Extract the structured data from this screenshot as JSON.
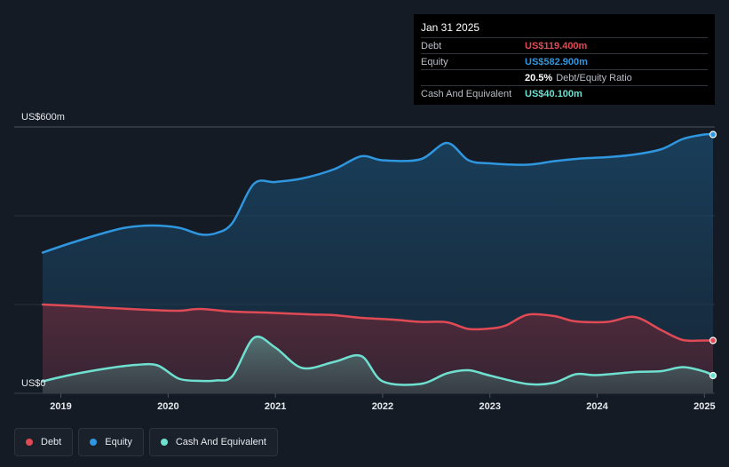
{
  "tooltip": {
    "date": "Jan 31 2025",
    "debt_label": "Debt",
    "debt_value": "US$119.400m",
    "equity_label": "Equity",
    "equity_value": "US$582.900m",
    "ratio_value": "20.5%",
    "ratio_label": "Debt/Equity Ratio",
    "cash_label": "Cash And Equivalent",
    "cash_value": "US$40.100m"
  },
  "legend": {
    "debt": "Debt",
    "equity": "Equity",
    "cash": "Cash And Equivalent"
  },
  "colors": {
    "debt": "#e04a55",
    "equity": "#2f96e0",
    "cash": "#6fe0d0",
    "background": "#151b24"
  },
  "chart_data": {
    "type": "area",
    "title": "",
    "xlabel": "",
    "ylabel": "",
    "y_top_label": "US$600m",
    "y_bottom_label": "US$0",
    "ylim": [
      0,
      600
    ],
    "xlim": [
      2018.83,
      2025.08
    ],
    "x_ticks": [
      {
        "value": 2019,
        "label": "2019"
      },
      {
        "value": 2020,
        "label": "2020"
      },
      {
        "value": 2021,
        "label": "2021"
      },
      {
        "value": 2022,
        "label": "2022"
      },
      {
        "value": 2023,
        "label": "2023"
      },
      {
        "value": 2024,
        "label": "2024"
      },
      {
        "value": 2025,
        "label": "2025"
      }
    ],
    "gridlines": [
      0,
      200,
      400,
      600
    ],
    "series": [
      {
        "name": "Equity",
        "key": "equity",
        "points": [
          [
            2018.83,
            317
          ],
          [
            2019.1,
            339
          ],
          [
            2019.4,
            361
          ],
          [
            2019.6,
            373
          ],
          [
            2019.85,
            378
          ],
          [
            2020.1,
            373
          ],
          [
            2020.3,
            358
          ],
          [
            2020.45,
            361
          ],
          [
            2020.6,
            384
          ],
          [
            2020.8,
            472
          ],
          [
            2021.0,
            476
          ],
          [
            2021.25,
            484
          ],
          [
            2021.55,
            505
          ],
          [
            2021.8,
            534
          ],
          [
            2022.0,
            525
          ],
          [
            2022.35,
            527
          ],
          [
            2022.6,
            564
          ],
          [
            2022.8,
            525
          ],
          [
            2023.0,
            518
          ],
          [
            2023.35,
            515
          ],
          [
            2023.6,
            523
          ],
          [
            2023.85,
            529
          ],
          [
            2024.1,
            532
          ],
          [
            2024.35,
            538
          ],
          [
            2024.6,
            550
          ],
          [
            2024.8,
            573
          ],
          [
            2025.0,
            583
          ],
          [
            2025.08,
            583
          ]
        ]
      },
      {
        "name": "Debt",
        "key": "debt",
        "points": [
          [
            2018.83,
            200
          ],
          [
            2019.1,
            197
          ],
          [
            2019.4,
            193
          ],
          [
            2019.8,
            188
          ],
          [
            2020.1,
            186
          ],
          [
            2020.3,
            190
          ],
          [
            2020.6,
            184
          ],
          [
            2020.9,
            182
          ],
          [
            2021.3,
            178
          ],
          [
            2021.55,
            176
          ],
          [
            2021.8,
            170
          ],
          [
            2022.1,
            166
          ],
          [
            2022.35,
            161
          ],
          [
            2022.6,
            160
          ],
          [
            2022.8,
            145
          ],
          [
            2023.0,
            146
          ],
          [
            2023.15,
            153
          ],
          [
            2023.35,
            177
          ],
          [
            2023.6,
            174
          ],
          [
            2023.8,
            162
          ],
          [
            2024.1,
            161
          ],
          [
            2024.35,
            172
          ],
          [
            2024.6,
            142
          ],
          [
            2024.8,
            120
          ],
          [
            2025.0,
            119
          ],
          [
            2025.08,
            119
          ]
        ]
      },
      {
        "name": "Cash And Equivalent",
        "key": "cash",
        "points": [
          [
            2018.83,
            27
          ],
          [
            2019.1,
            42
          ],
          [
            2019.4,
            55
          ],
          [
            2019.7,
            64
          ],
          [
            2019.9,
            63
          ],
          [
            2020.1,
            33
          ],
          [
            2020.3,
            28
          ],
          [
            2020.45,
            29
          ],
          [
            2020.6,
            39
          ],
          [
            2020.8,
            125
          ],
          [
            2021.0,
            103
          ],
          [
            2021.25,
            57
          ],
          [
            2021.55,
            71
          ],
          [
            2021.8,
            84
          ],
          [
            2022.0,
            27
          ],
          [
            2022.35,
            21
          ],
          [
            2022.6,
            45
          ],
          [
            2022.8,
            52
          ],
          [
            2023.0,
            40
          ],
          [
            2023.35,
            21
          ],
          [
            2023.6,
            24
          ],
          [
            2023.8,
            43
          ],
          [
            2024.0,
            41
          ],
          [
            2024.35,
            48
          ],
          [
            2024.6,
            50
          ],
          [
            2024.8,
            59
          ],
          [
            2025.0,
            49
          ],
          [
            2025.08,
            40
          ]
        ]
      }
    ]
  }
}
